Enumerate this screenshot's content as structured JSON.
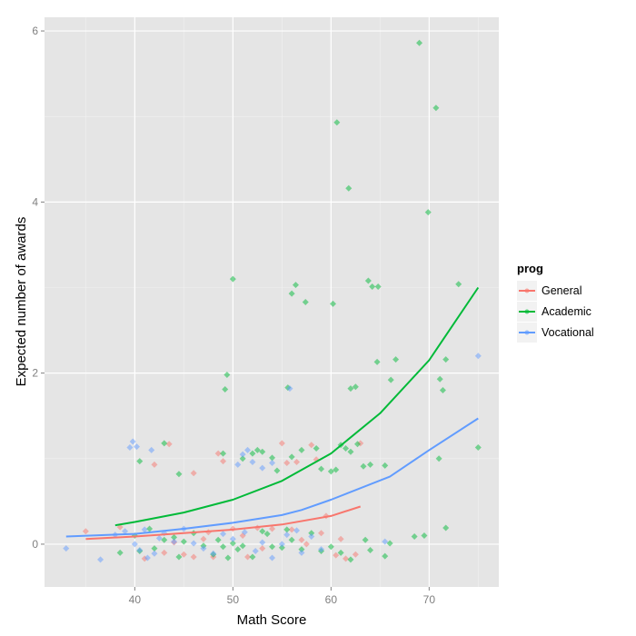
{
  "chart_data": {
    "type": "scatter",
    "title": "",
    "xlabel": "Math Score",
    "ylabel": "Expected number of awards",
    "xlim": [
      30.8,
      77.1
    ],
    "ylim": [
      -0.5,
      6.16
    ],
    "x_ticks": [
      40,
      50,
      60,
      70
    ],
    "x_tick_labels": [
      "40",
      "50",
      "60",
      "70"
    ],
    "x_minor": [
      35,
      45,
      55,
      65,
      75
    ],
    "y_ticks": [
      0,
      2,
      4,
      6
    ],
    "y_tick_labels": [
      "0",
      "2",
      "4",
      "6"
    ],
    "y_minor": [
      1,
      3,
      5
    ],
    "grid": true,
    "panel_background": "#e5e5e5",
    "legend": {
      "title": "prog",
      "position": "right",
      "entries": [
        {
          "label": "General",
          "color": "#f8766d"
        },
        {
          "label": "Academic",
          "color": "#00ba38"
        },
        {
          "label": "Vocational",
          "color": "#619cff"
        }
      ]
    },
    "series": [
      {
        "name": "General",
        "color": "#f8766d",
        "line": [
          [
            35,
            0.06
          ],
          [
            40,
            0.09
          ],
          [
            45,
            0.13
          ],
          [
            50,
            0.17
          ],
          [
            55,
            0.23
          ],
          [
            60,
            0.33
          ],
          [
            63,
            0.44
          ]
        ],
        "points": [
          [
            35,
            0.15
          ],
          [
            38.5,
            0.2
          ],
          [
            42,
            0.93
          ],
          [
            43.5,
            1.17
          ],
          [
            45,
            -0.12
          ],
          [
            46,
            0.83
          ],
          [
            41,
            -0.17
          ],
          [
            43,
            -0.1
          ],
          [
            44,
            0.02
          ],
          [
            46,
            -0.15
          ],
          [
            47,
            0.06
          ],
          [
            48.5,
            1.06
          ],
          [
            50,
            0.18
          ],
          [
            51,
            0.1
          ],
          [
            52.5,
            0.19
          ],
          [
            53,
            -0.05
          ],
          [
            54,
            0.18
          ],
          [
            55,
            1.18
          ],
          [
            56,
            0.17
          ],
          [
            57,
            0.05
          ],
          [
            58,
            1.16
          ],
          [
            58.5,
            0.99
          ],
          [
            49,
            0.97
          ],
          [
            48,
            -0.15
          ],
          [
            51.5,
            -0.15
          ],
          [
            56.5,
            0.96
          ],
          [
            57.5,
            0.0
          ],
          [
            59,
            0.13
          ],
          [
            60.5,
            -0.13
          ],
          [
            61,
            0.06
          ],
          [
            62.5,
            -0.12
          ],
          [
            63,
            1.18
          ],
          [
            59.5,
            0.33
          ],
          [
            61.5,
            -0.17
          ],
          [
            55.5,
            0.95
          ],
          [
            47.5,
            0.14
          ]
        ]
      },
      {
        "name": "Academic",
        "color": "#00ba38",
        "line": [
          [
            38,
            0.22
          ],
          [
            40,
            0.26
          ],
          [
            45,
            0.37
          ],
          [
            50,
            0.52
          ],
          [
            55,
            0.74
          ],
          [
            60,
            1.06
          ],
          [
            65,
            1.53
          ],
          [
            70,
            2.15
          ],
          [
            75,
            3.0
          ]
        ],
        "points": [
          [
            69,
            5.86
          ],
          [
            70.7,
            5.1
          ],
          [
            60.6,
            4.93
          ],
          [
            61.8,
            4.16
          ],
          [
            69.9,
            3.88
          ],
          [
            50,
            3.1
          ],
          [
            63.8,
            3.08
          ],
          [
            56.4,
            3.03
          ],
          [
            64.2,
            3.01
          ],
          [
            64.8,
            3.01
          ],
          [
            73,
            3.04
          ],
          [
            56,
            2.93
          ],
          [
            57.4,
            2.83
          ],
          [
            60.2,
            2.81
          ],
          [
            49.4,
            1.98
          ],
          [
            66.6,
            2.16
          ],
          [
            71.7,
            2.16
          ],
          [
            49.2,
            1.81
          ],
          [
            55.6,
            1.83
          ],
          [
            62,
            1.82
          ],
          [
            62.5,
            1.84
          ],
          [
            64.7,
            2.13
          ],
          [
            66.1,
            1.92
          ],
          [
            71.1,
            1.93
          ],
          [
            71.4,
            1.8
          ],
          [
            75,
            1.13
          ],
          [
            40.5,
            0.97
          ],
          [
            43,
            1.18
          ],
          [
            44.5,
            0.82
          ],
          [
            49,
            1.06
          ],
          [
            51,
            1.0
          ],
          [
            52,
            1.06
          ],
          [
            52.5,
            1.1
          ],
          [
            53,
            1.08
          ],
          [
            54,
            1.01
          ],
          [
            54.5,
            0.86
          ],
          [
            56,
            1.02
          ],
          [
            57,
            1.1
          ],
          [
            58.5,
            1.12
          ],
          [
            59,
            0.88
          ],
          [
            60,
            0.85
          ],
          [
            60.5,
            0.87
          ],
          [
            61,
            1.16
          ],
          [
            61.5,
            1.12
          ],
          [
            62,
            1.08
          ],
          [
            62.7,
            1.17
          ],
          [
            63.3,
            0.91
          ],
          [
            64,
            0.93
          ],
          [
            65.5,
            0.92
          ],
          [
            71,
            1.0
          ],
          [
            38.5,
            -0.1
          ],
          [
            40.5,
            -0.08
          ],
          [
            41.5,
            0.18
          ],
          [
            44,
            0.08
          ],
          [
            44.5,
            -0.15
          ],
          [
            45,
            0.03
          ],
          [
            46,
            0.13
          ],
          [
            47,
            -0.02
          ],
          [
            48,
            -0.12
          ],
          [
            48.5,
            0.05
          ],
          [
            49,
            -0.03
          ],
          [
            49.5,
            -0.16
          ],
          [
            50,
            0.01
          ],
          [
            50.5,
            -0.06
          ],
          [
            51,
            -0.02
          ],
          [
            52,
            -0.15
          ],
          [
            53,
            0.15
          ],
          [
            53.5,
            0.12
          ],
          [
            54,
            -0.03
          ],
          [
            55,
            -0.04
          ],
          [
            55.5,
            0.17
          ],
          [
            56,
            0.05
          ],
          [
            57,
            -0.06
          ],
          [
            58,
            0.13
          ],
          [
            59,
            -0.08
          ],
          [
            60,
            -0.03
          ],
          [
            61,
            -0.1
          ],
          [
            62,
            -0.18
          ],
          [
            63.5,
            0.05
          ],
          [
            64,
            -0.07
          ],
          [
            65.5,
            -0.14
          ],
          [
            66,
            0.01
          ],
          [
            68.5,
            0.09
          ],
          [
            69.5,
            0.1
          ],
          [
            71.7,
            0.19
          ],
          [
            40,
            0.1
          ],
          [
            42,
            -0.05
          ],
          [
            43,
            0.05
          ]
        ]
      },
      {
        "name": "Vocational",
        "color": "#619cff",
        "line": [
          [
            33,
            0.09
          ],
          [
            40,
            0.12
          ],
          [
            45,
            0.18
          ],
          [
            50,
            0.25
          ],
          [
            55,
            0.34
          ],
          [
            57,
            0.4
          ],
          [
            60,
            0.52
          ],
          [
            66,
            0.79
          ],
          [
            70,
            1.1
          ],
          [
            75,
            1.47
          ]
        ],
        "points": [
          [
            33,
            -0.05
          ],
          [
            36.5,
            -0.18
          ],
          [
            38,
            0.11
          ],
          [
            39.5,
            1.13
          ],
          [
            39.8,
            1.2
          ],
          [
            40.2,
            1.14
          ],
          [
            41.7,
            1.1
          ],
          [
            39,
            0.15
          ],
          [
            40,
            0.0
          ],
          [
            40.5,
            -0.07
          ],
          [
            41,
            0.17
          ],
          [
            41.3,
            -0.16
          ],
          [
            42,
            -0.11
          ],
          [
            42.5,
            0.07
          ],
          [
            43,
            0.13
          ],
          [
            44,
            0.03
          ],
          [
            45,
            0.18
          ],
          [
            46,
            0.01
          ],
          [
            47,
            -0.05
          ],
          [
            48,
            -0.11
          ],
          [
            50.5,
            0.93
          ],
          [
            51,
            1.05
          ],
          [
            51.5,
            1.1
          ],
          [
            52,
            0.96
          ],
          [
            53,
            0.89
          ],
          [
            54,
            0.95
          ],
          [
            55.8,
            1.82
          ],
          [
            49,
            0.12
          ],
          [
            50,
            0.06
          ],
          [
            51.2,
            0.14
          ],
          [
            52.3,
            -0.08
          ],
          [
            53,
            0.02
          ],
          [
            54,
            -0.16
          ],
          [
            55,
            0.0
          ],
          [
            55.5,
            0.11
          ],
          [
            56.5,
            0.16
          ],
          [
            57,
            -0.1
          ],
          [
            58,
            0.09
          ],
          [
            59,
            -0.06
          ],
          [
            65.5,
            0.03
          ],
          [
            75,
            2.2
          ]
        ]
      }
    ]
  },
  "axes": {
    "x_title": "Math Score",
    "y_title": "Expected number of awards"
  },
  "legend": {
    "title": "prog",
    "items": [
      {
        "label": "General",
        "color": "#f8766d"
      },
      {
        "label": "Academic",
        "color": "#00ba38"
      },
      {
        "label": "Vocational",
        "color": "#619cff"
      }
    ]
  }
}
